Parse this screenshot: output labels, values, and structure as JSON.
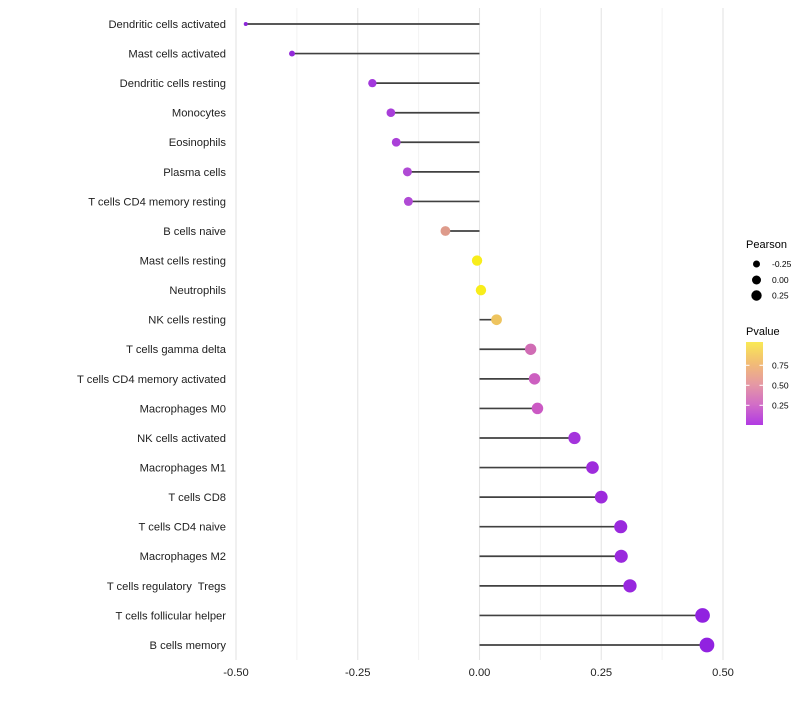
{
  "chart_data": {
    "type": "scatter",
    "variant": "lollipop",
    "orientation": "horizontal",
    "title": "",
    "xlabel": "",
    "ylabel": "",
    "xlim": [
      -0.52,
      0.52
    ],
    "grid": true,
    "legend_position": "right",
    "x_ticks": [
      {
        "value": -0.5,
        "label": "-0.50"
      },
      {
        "value": -0.25,
        "label": "-0.25"
      },
      {
        "value": 0.0,
        "label": "0.00"
      },
      {
        "value": 0.25,
        "label": "0.25"
      },
      {
        "value": 0.5,
        "label": "0.50"
      }
    ],
    "points": [
      {
        "label": "Dendritic cells activated",
        "pearson": -0.48,
        "color": "#8c26d9"
      },
      {
        "label": "Mast cells activated",
        "pearson": -0.385,
        "color": "#9329d9"
      },
      {
        "label": "Dendritic cells resting",
        "pearson": -0.22,
        "color": "#a338dc"
      },
      {
        "label": "Monocytes",
        "pearson": -0.182,
        "color": "#a83ed9"
      },
      {
        "label": "Eosinophils",
        "pearson": -0.171,
        "color": "#aa40d8"
      },
      {
        "label": "Plasma cells",
        "pearson": -0.148,
        "color": "#b04ad5"
      },
      {
        "label": "T cells CD4 memory resting",
        "pearson": -0.146,
        "color": "#b04ad5"
      },
      {
        "label": "B cells naive",
        "pearson": -0.07,
        "color": "#de9b8b"
      },
      {
        "label": "Mast cells resting",
        "pearson": -0.005,
        "color": "#f8ed1b"
      },
      {
        "label": "Neutrophils",
        "pearson": 0.003,
        "color": "#f8ed1b"
      },
      {
        "label": "NK cells resting",
        "pearson": 0.035,
        "color": "#eec45f"
      },
      {
        "label": "T cells gamma delta",
        "pearson": 0.105,
        "color": "#d06cb4"
      },
      {
        "label": "T cells CD4 memory activated",
        "pearson": 0.113,
        "color": "#cc5fc0"
      },
      {
        "label": "Macrophages M0",
        "pearson": 0.119,
        "color": "#cb59c4"
      },
      {
        "label": "NK cells activated",
        "pearson": 0.195,
        "color": "#a434dc"
      },
      {
        "label": "Macrophages M1",
        "pearson": 0.232,
        "color": "#9e2cdc"
      },
      {
        "label": "T cells CD8",
        "pearson": 0.25,
        "color": "#9d2bdc"
      },
      {
        "label": "T cells CD4 naive",
        "pearson": 0.29,
        "color": "#9a29dd"
      },
      {
        "label": "Macrophages M2",
        "pearson": 0.291,
        "color": "#9a29dd"
      },
      {
        "label": "T cells regulatory  Tregs",
        "pearson": 0.309,
        "color": "#9827de"
      },
      {
        "label": "T cells follicular helper",
        "pearson": 0.458,
        "color": "#9122e0"
      },
      {
        "label": "B cells memory",
        "pearson": 0.467,
        "color": "#9122e0"
      }
    ]
  },
  "legend": {
    "size": {
      "title": "Pearson",
      "entries": [
        {
          "label": "-0.25",
          "value": -0.25
        },
        {
          "label": "0.00",
          "value": 0.0
        },
        {
          "label": "0.25",
          "value": 0.25
        }
      ],
      "dot_color": "#000000"
    },
    "color": {
      "title": "Pvalue",
      "ticks": [
        {
          "label": "0.75"
        },
        {
          "label": "0.50"
        },
        {
          "label": "0.25"
        }
      ],
      "gradient_top_to_bottom": [
        "#f9e955",
        "#f2bd74",
        "#e69aa2",
        "#d26ec6",
        "#b13ae3"
      ]
    }
  },
  "colors": {
    "background": "#ffffff",
    "stem": "#414141",
    "grid_major": "#e4e4e4",
    "grid_minor": "#f1f1f1",
    "axis_text": "#212121",
    "legend_text": "#000000"
  }
}
